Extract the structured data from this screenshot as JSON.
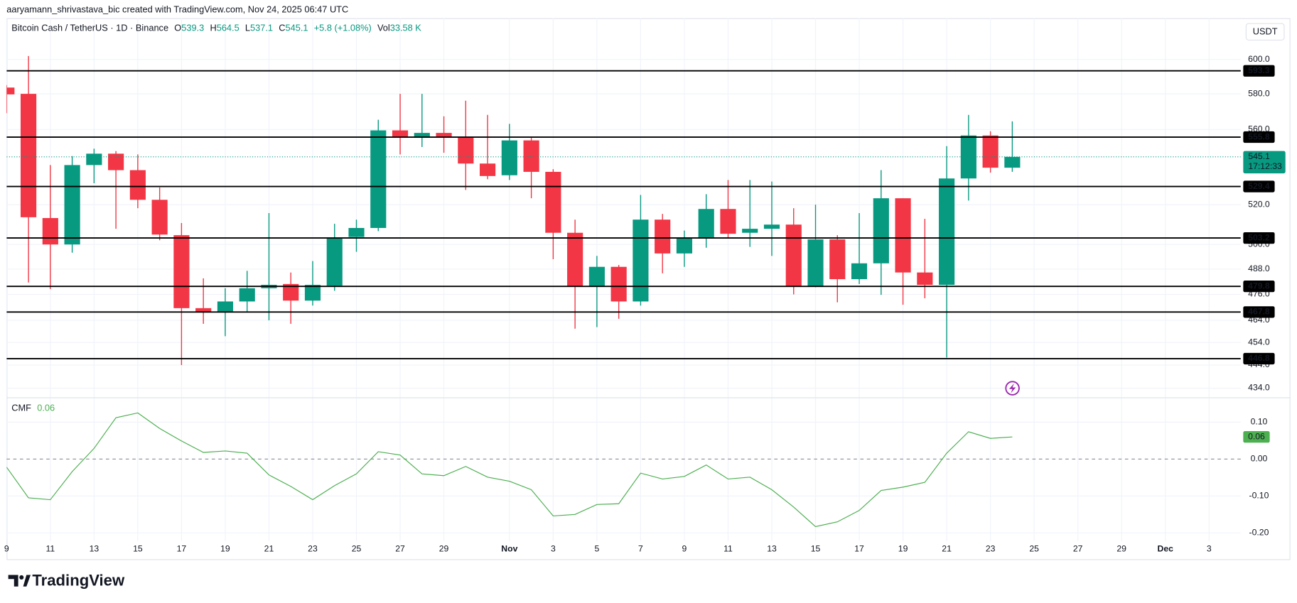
{
  "header": "aaryamann_shrivastava_bic created with TradingView.com, Nov 24, 2025 06:47 UTC",
  "symbol": "Bitcoin Cash / TetherUS · 1D · Binance",
  "ohlc_keys": [
    "O",
    "H",
    "L",
    "C"
  ],
  "change": "+5.8 (+1.08%)",
  "volume_key": "Vol",
  "volume": "33.58 K",
  "currency": "USDT",
  "logo": "TradingView",
  "chart_data": [
    {
      "type": "candlestick",
      "log_scale": true,
      "grid": true,
      "up_color": "#089981",
      "down_color": "#f23645",
      "x": [
        0,
        1,
        2,
        3,
        4,
        5,
        6,
        7,
        8,
        9,
        10,
        11,
        12,
        13,
        14,
        15,
        16,
        17,
        18,
        19,
        20,
        21,
        22,
        23,
        24,
        25,
        26,
        27,
        28,
        29,
        30,
        31,
        32,
        33,
        34,
        35,
        36,
        37,
        38,
        39,
        40,
        41,
        42,
        43,
        44,
        45,
        46
      ],
      "open": [
        583.6,
        580,
        513.2,
        500,
        540.7,
        546.8,
        538,
        522.5,
        504.6,
        469.6,
        468,
        472.7,
        478.9,
        480.9,
        473.1,
        480.1,
        503.7,
        508.2,
        559.5,
        555.8,
        558.1,
        555.8,
        541.5,
        535.3,
        554,
        537.1,
        505.8,
        479.8,
        489.1,
        472.7,
        512.4,
        495.6,
        503.2,
        517.8,
        505.8,
        507.8,
        509.9,
        479.8,
        502.5,
        483.2,
        490.8,
        523.3,
        486.4,
        480.5,
        533.6,
        556.7,
        539.3
      ],
      "high": [
        585,
        602,
        540.7,
        545.5,
        549.5,
        548.2,
        546.4,
        528.9,
        510.7,
        483.6,
        478.9,
        487.2,
        515.7,
        486.4,
        491.9,
        510.3,
        512.4,
        565.4,
        580,
        580,
        567.3,
        576.1,
        568.1,
        563.1,
        555.4,
        538.5,
        512.4,
        494.4,
        490,
        525,
        515.3,
        506.9,
        525.4,
        532.8,
        532.8,
        532,
        518.2,
        520,
        504.6,
        515.7,
        538,
        523.3,
        512.8,
        550.9,
        568.1,
        559,
        564.5
      ],
      "low": [
        569.1,
        481.6,
        478.5,
        496,
        531.1,
        507.8,
        518.2,
        502.1,
        444,
        462.4,
        456.8,
        468.1,
        464,
        462.4,
        470.8,
        477.7,
        496.4,
        506.6,
        546.4,
        550.4,
        547.3,
        527.6,
        533.2,
        532.8,
        523.3,
        492.8,
        460.2,
        460.9,
        464.7,
        470.8,
        486,
        489.1,
        498.4,
        503.2,
        498.8,
        494.4,
        476,
        479.4,
        472.3,
        480.9,
        475.8,
        471.2,
        474.2,
        447.3,
        522.1,
        536.7,
        537.1
      ],
      "close": [
        579.7,
        513.6,
        500,
        540.7,
        546.8,
        538,
        522.5,
        504.9,
        469.6,
        467.8,
        472.7,
        478.9,
        480.5,
        473.1,
        480.5,
        503.2,
        508.2,
        559.5,
        555.8,
        558.1,
        555.8,
        541.5,
        534.9,
        554,
        537.1,
        505.8,
        479.8,
        489.1,
        472.7,
        512.4,
        495.6,
        503.2,
        517.8,
        505.3,
        507.8,
        509.9,
        479.8,
        502.5,
        483.2,
        490.8,
        523.3,
        486.4,
        480.5,
        533.6,
        556.7,
        539.3,
        545.1
      ],
      "xlim": [
        0,
        56.45
      ],
      "xticks": [
        {
          "value": 0,
          "label": "9"
        },
        {
          "value": 2,
          "label": "11"
        },
        {
          "value": 4,
          "label": "13"
        },
        {
          "value": 6,
          "label": "15"
        },
        {
          "value": 8,
          "label": "17"
        },
        {
          "value": 10,
          "label": "19"
        },
        {
          "value": 12,
          "label": "21"
        },
        {
          "value": 14,
          "label": "23"
        },
        {
          "value": 16,
          "label": "25"
        },
        {
          "value": 18,
          "label": "27"
        },
        {
          "value": 20,
          "label": "29"
        },
        {
          "value": 23,
          "label": "Nov"
        },
        {
          "value": 25,
          "label": "3"
        },
        {
          "value": 27,
          "label": "5"
        },
        {
          "value": 29,
          "label": "7"
        },
        {
          "value": 31,
          "label": "9"
        },
        {
          "value": 33,
          "label": "11"
        },
        {
          "value": 35,
          "label": "13"
        },
        {
          "value": 37,
          "label": "15"
        },
        {
          "value": 39,
          "label": "17"
        },
        {
          "value": 41,
          "label": "19"
        },
        {
          "value": 43,
          "label": "21"
        },
        {
          "value": 45,
          "label": "23"
        },
        {
          "value": 47,
          "label": "25"
        },
        {
          "value": 49,
          "label": "27"
        },
        {
          "value": 51,
          "label": "29"
        },
        {
          "value": 53,
          "label": "Dec"
        },
        {
          "value": 55,
          "label": "3"
        }
      ],
      "ylim": [
        430.1,
        624.9
      ],
      "yticks": [
        {
          "value": 434,
          "label": "434.0"
        },
        {
          "value": 444,
          "label": "444.0"
        },
        {
          "value": 454,
          "label": "454.0"
        },
        {
          "value": 464,
          "label": "464.0"
        },
        {
          "value": 476,
          "label": "476.0"
        },
        {
          "value": 488,
          "label": "488.0"
        },
        {
          "value": 500,
          "label": "500.0"
        },
        {
          "value": 520,
          "label": "520.0"
        },
        {
          "value": 560,
          "label": "560.0"
        },
        {
          "value": 580,
          "label": "580.0"
        },
        {
          "value": 600,
          "label": "600.0"
        }
      ],
      "levels": [
        {
          "value": 593.3,
          "label": "593.3"
        },
        {
          "value": 555.8,
          "label": "555.8"
        },
        {
          "value": 529.4,
          "label": "529.4"
        },
        {
          "value": 503.2,
          "label": "503.2"
        },
        {
          "value": 479.8,
          "label": "479.8"
        },
        {
          "value": 467.8,
          "label": "467.8"
        },
        {
          "value": 446.8,
          "label": "446.8"
        }
      ],
      "level_color": "#000000",
      "last_price": {
        "value": 545.1,
        "label": "545.1",
        "countdown": "17:12:33"
      }
    },
    {
      "type": "line",
      "name": "CMF",
      "color": "#4caf50",
      "grid": true,
      "zero_line": true,
      "x": [
        0,
        1,
        2,
        3,
        4,
        5,
        6,
        7,
        8,
        9,
        10,
        11,
        12,
        13,
        14,
        15,
        16,
        17,
        18,
        19,
        20,
        21,
        22,
        23,
        24,
        25,
        26,
        27,
        28,
        29,
        30,
        31,
        32,
        33,
        34,
        35,
        36,
        37,
        38,
        39,
        40,
        41,
        42,
        43,
        44,
        45,
        46
      ],
      "values": [
        -0.022,
        -0.105,
        -0.11,
        -0.034,
        0.029,
        0.112,
        0.125,
        0.083,
        0.049,
        0.018,
        0.022,
        0.016,
        -0.043,
        -0.074,
        -0.11,
        -0.072,
        -0.04,
        0.02,
        0.011,
        -0.04,
        -0.045,
        -0.02,
        -0.049,
        -0.06,
        -0.083,
        -0.154,
        -0.15,
        -0.123,
        -0.121,
        -0.038,
        -0.054,
        -0.047,
        -0.016,
        -0.054,
        -0.049,
        -0.083,
        -0.13,
        -0.183,
        -0.17,
        -0.139,
        -0.085,
        -0.076,
        -0.063,
        0.016,
        0.074,
        0.056,
        0.06
      ],
      "last_label": "0.06",
      "ylim": [
        -0.222,
        0.165
      ],
      "yticks": [
        {
          "value": 0.1,
          "label": "0.10"
        },
        {
          "value": 0,
          "label": "0.00"
        },
        {
          "value": -0.1,
          "label": "-0.10"
        },
        {
          "value": -0.2,
          "label": "-0.20"
        }
      ]
    }
  ]
}
